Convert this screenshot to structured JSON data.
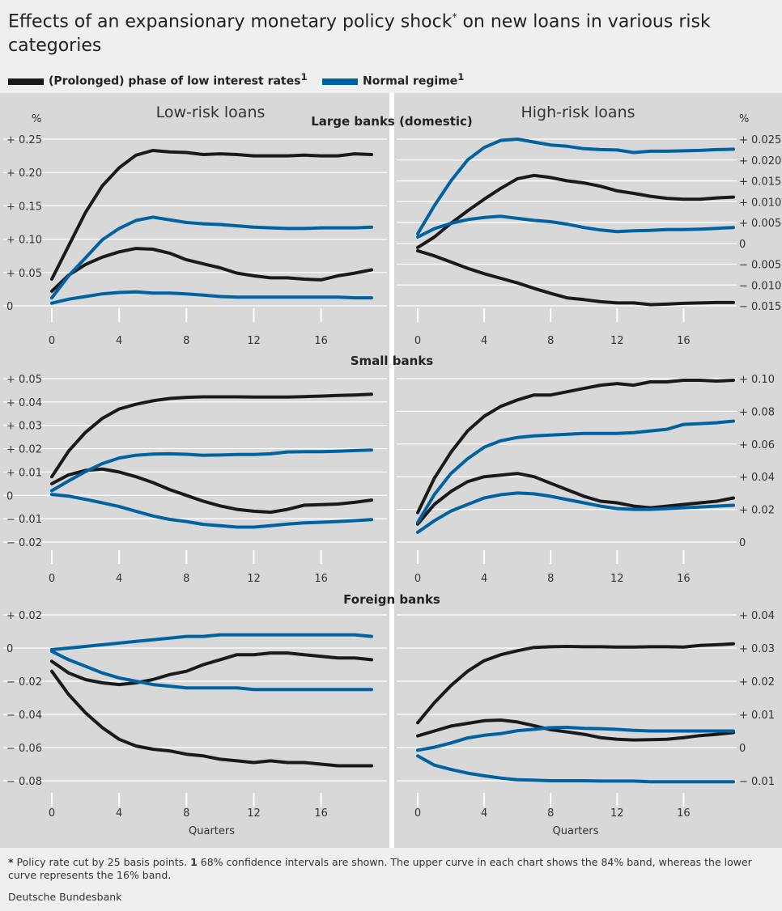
{
  "title": "Effects of an expansionary monetary policy shock",
  "title_star": "*",
  "title_rest": " on new loans in various risk categories",
  "legend": [
    {
      "label": "(Prolonged) phase of low interest rates",
      "sup": "1",
      "color": "#1a1a1a"
    },
    {
      "label": "Normal regime",
      "sup": "1",
      "color": "#0062a1"
    }
  ],
  "colors": {
    "low_rates": "#1a1a1a",
    "normal": "#0062a1",
    "panel": "#d8d8d8",
    "grid": "#ffffff"
  },
  "footnote_star": "*",
  "footnote_text": " Policy rate cut by 25 basis points. ",
  "footnote_one": "1",
  "footnote_rest": " 68% confidence intervals are shown. The upper curve in each chart shows the 84% band, whereas the lower curve represents the 16% band.",
  "source": "Deutsche Bundesbank",
  "column_titles": {
    "left": "Low-risk loans",
    "right": "High-risk loans"
  },
  "xlabel": "Quarters",
  "chart_data": [
    {
      "type": "line",
      "row": "Large banks (domestic)",
      "column": "Low-risk loans",
      "unit": "%",
      "ylim": [
        0,
        0.25
      ],
      "yticks": [
        0,
        0.05,
        0.1,
        0.15,
        0.2,
        0.25
      ],
      "ytick_labels": [
        "0",
        "+ 0.05",
        "+ 0.10",
        "+ 0.15",
        "+ 0.20",
        "+ 0.25"
      ],
      "xticks": [
        0,
        4,
        8,
        12,
        16
      ],
      "x": [
        0,
        1,
        2,
        3,
        4,
        5,
        6,
        7,
        8,
        9,
        10,
        11,
        12,
        13,
        14,
        15,
        16,
        17,
        18,
        19
      ],
      "series": [
        {
          "name": "(Prolonged) phase of low interest rates",
          "band": "upper",
          "values": [
            0.04,
            0.09,
            0.14,
            0.18,
            0.207,
            0.226,
            0.233,
            0.231,
            0.23,
            0.227,
            0.228,
            0.227,
            0.225,
            0.225,
            0.225,
            0.226,
            0.225,
            0.225,
            0.228,
            0.227
          ]
        },
        {
          "name": "(Prolonged) phase of low interest rates",
          "band": "lower",
          "values": [
            0.022,
            0.046,
            0.062,
            0.073,
            0.081,
            0.086,
            0.085,
            0.079,
            0.069,
            0.063,
            0.057,
            0.049,
            0.045,
            0.042,
            0.042,
            0.04,
            0.039,
            0.045,
            0.049,
            0.054
          ]
        },
        {
          "name": "Normal regime",
          "band": "upper",
          "values": [
            0.012,
            0.045,
            0.072,
            0.099,
            0.116,
            0.128,
            0.133,
            0.129,
            0.125,
            0.123,
            0.122,
            0.12,
            0.118,
            0.117,
            0.116,
            0.116,
            0.117,
            0.117,
            0.117,
            0.118
          ]
        },
        {
          "name": "Normal regime",
          "band": "lower",
          "values": [
            0.004,
            0.01,
            0.014,
            0.018,
            0.02,
            0.021,
            0.019,
            0.019,
            0.018,
            0.016,
            0.014,
            0.013,
            0.013,
            0.013,
            0.013,
            0.013,
            0.013,
            0.013,
            0.012,
            0.012
          ]
        }
      ]
    },
    {
      "type": "line",
      "row": "Large banks (domestic)",
      "column": "High-risk loans",
      "unit": "%",
      "ylim": [
        -0.015,
        0.025
      ],
      "yticks": [
        -0.015,
        -0.01,
        -0.005,
        0,
        0.005,
        0.01,
        0.015,
        0.02,
        0.025
      ],
      "ytick_labels": [
        "− 0.015",
        "− 0.010",
        "− 0.005",
        "0",
        "+ 0.005",
        "+ 0.010",
        "+ 0.015",
        "+ 0.020",
        "+ 0.025"
      ],
      "xticks": [
        0,
        4,
        8,
        12,
        16
      ],
      "x": [
        0,
        1,
        2,
        3,
        4,
        5,
        6,
        7,
        8,
        9,
        10,
        11,
        12,
        13,
        14,
        15,
        16,
        17,
        18,
        19
      ],
      "series": [
        {
          "name": "(Prolonged) phase of low interest rates",
          "band": "upper",
          "values": [
            -0.001,
            0.0015,
            0.0048,
            0.0078,
            0.0106,
            0.0132,
            0.0155,
            0.0163,
            0.0158,
            0.015,
            0.0145,
            0.0137,
            0.0126,
            0.012,
            0.0113,
            0.0108,
            0.0106,
            0.0106,
            0.0109,
            0.0111
          ]
        },
        {
          "name": "(Prolonged) phase of low interest rates",
          "band": "lower",
          "values": [
            -0.0018,
            -0.003,
            -0.0045,
            -0.006,
            -0.0073,
            -0.0084,
            -0.0095,
            -0.0108,
            -0.012,
            -0.0131,
            -0.0135,
            -0.014,
            -0.0143,
            -0.0143,
            -0.0147,
            -0.0146,
            -0.0144,
            -0.0143,
            -0.0142,
            -0.0142
          ]
        },
        {
          "name": "Normal regime",
          "band": "upper",
          "values": [
            0.0023,
            0.009,
            0.015,
            0.02,
            0.023,
            0.0247,
            0.025,
            0.0243,
            0.0236,
            0.0233,
            0.0227,
            0.0225,
            0.0224,
            0.0218,
            0.0221,
            0.0221,
            0.0222,
            0.0223,
            0.0225,
            0.0226
          ]
        },
        {
          "name": "Normal regime",
          "band": "lower",
          "values": [
            0.0015,
            0.0035,
            0.0048,
            0.0057,
            0.0062,
            0.0065,
            0.006,
            0.0055,
            0.0052,
            0.0046,
            0.0038,
            0.0032,
            0.0028,
            0.003,
            0.0031,
            0.0033,
            0.0033,
            0.0034,
            0.0036,
            0.0038
          ]
        }
      ]
    },
    {
      "type": "line",
      "row": "Small banks",
      "column": "Low-risk loans",
      "unit": "%",
      "ylim": [
        -0.02,
        0.05
      ],
      "yticks": [
        -0.02,
        -0.01,
        0,
        0.01,
        0.02,
        0.03,
        0.04,
        0.05
      ],
      "ytick_labels": [
        "− 0.02",
        "− 0.01",
        "0",
        "+ 0.01",
        "+ 0.02",
        "+ 0.03",
        "+ 0.04",
        "+ 0.05"
      ],
      "xticks": [
        0,
        4,
        8,
        12,
        16
      ],
      "x": [
        0,
        1,
        2,
        3,
        4,
        5,
        6,
        7,
        8,
        9,
        10,
        11,
        12,
        13,
        14,
        15,
        16,
        17,
        18,
        19
      ],
      "series": [
        {
          "name": "(Prolonged) phase of low interest rates",
          "band": "upper",
          "values": [
            0.008,
            0.019,
            0.027,
            0.033,
            0.037,
            0.039,
            0.0405,
            0.0415,
            0.042,
            0.0422,
            0.0422,
            0.0422,
            0.0421,
            0.0421,
            0.0421,
            0.0423,
            0.0425,
            0.0428,
            0.043,
            0.0433
          ]
        },
        {
          "name": "(Prolonged) phase of low interest rates",
          "band": "lower",
          "values": [
            0.005,
            0.0088,
            0.0107,
            0.0113,
            0.01,
            0.008,
            0.0055,
            0.0025,
            0,
            -0.0025,
            -0.0045,
            -0.006,
            -0.0068,
            -0.0072,
            -0.006,
            -0.0042,
            -0.004,
            -0.0037,
            -0.003,
            -0.002
          ]
        },
        {
          "name": "Normal regime",
          "band": "upper",
          "values": [
            0.002,
            0.0062,
            0.0102,
            0.0136,
            0.016,
            0.0172,
            0.0177,
            0.0178,
            0.0176,
            0.0172,
            0.0173,
            0.0175,
            0.0175,
            0.0178,
            0.0186,
            0.0187,
            0.0187,
            0.0189,
            0.0192,
            0.0194
          ]
        },
        {
          "name": "Normal regime",
          "band": "lower",
          "values": [
            0.0004,
            -0.0003,
            -0.0017,
            -0.0032,
            -0.0048,
            -0.0068,
            -0.0088,
            -0.0103,
            -0.0112,
            -0.0124,
            -0.013,
            -0.0136,
            -0.0136,
            -0.013,
            -0.0123,
            -0.0118,
            -0.0115,
            -0.0112,
            -0.0108,
            -0.0104
          ]
        }
      ]
    },
    {
      "type": "line",
      "row": "Small banks",
      "column": "High-risk loans",
      "unit": "%",
      "ylim": [
        0,
        0.1
      ],
      "yticks": [
        0,
        0.02,
        0.04,
        0.06,
        0.08,
        0.1
      ],
      "ytick_labels": [
        "0",
        "+ 0.02",
        "+ 0.04",
        "+ 0.06",
        "+ 0.08",
        "+ 0.10"
      ],
      "xticks": [
        0,
        4,
        8,
        12,
        16
      ],
      "x": [
        0,
        1,
        2,
        3,
        4,
        5,
        6,
        7,
        8,
        9,
        10,
        11,
        12,
        13,
        14,
        15,
        16,
        17,
        18,
        19
      ],
      "series": [
        {
          "name": "(Prolonged) phase of low interest rates",
          "band": "upper",
          "values": [
            0.018,
            0.039,
            0.055,
            0.068,
            0.077,
            0.083,
            0.087,
            0.09,
            0.09,
            0.092,
            0.094,
            0.096,
            0.097,
            0.096,
            0.098,
            0.098,
            0.099,
            0.099,
            0.0985,
            0.099
          ]
        },
        {
          "name": "(Prolonged) phase of low interest rates",
          "band": "lower",
          "values": [
            0.011,
            0.023,
            0.031,
            0.037,
            0.04,
            0.041,
            0.042,
            0.04,
            0.036,
            0.032,
            0.028,
            0.025,
            0.024,
            0.022,
            0.021,
            0.022,
            0.023,
            0.024,
            0.025,
            0.027
          ]
        },
        {
          "name": "Normal regime",
          "band": "upper",
          "values": [
            0.012,
            0.029,
            0.042,
            0.051,
            0.058,
            0.062,
            0.064,
            0.065,
            0.0655,
            0.066,
            0.0665,
            0.0665,
            0.0665,
            0.067,
            0.068,
            0.069,
            0.072,
            0.0725,
            0.073,
            0.074
          ]
        },
        {
          "name": "Normal regime",
          "band": "lower",
          "values": [
            0.006,
            0.013,
            0.019,
            0.023,
            0.027,
            0.029,
            0.03,
            0.0295,
            0.028,
            0.026,
            0.024,
            0.022,
            0.0205,
            0.02,
            0.02,
            0.0205,
            0.021,
            0.0215,
            0.022,
            0.0225
          ]
        }
      ]
    },
    {
      "type": "line",
      "row": "Foreign banks",
      "column": "Low-risk loans",
      "unit": "%",
      "ylim": [
        -0.08,
        0.02
      ],
      "yticks": [
        -0.08,
        -0.06,
        -0.04,
        -0.02,
        0,
        0.02
      ],
      "ytick_labels": [
        "− 0.08",
        "− 0.06",
        "− 0.04",
        "− 0.02",
        "0",
        "+ 0.02"
      ],
      "xticks": [
        0,
        4,
        8,
        12,
        16
      ],
      "x": [
        0,
        1,
        2,
        3,
        4,
        5,
        6,
        7,
        8,
        9,
        10,
        11,
        12,
        13,
        14,
        15,
        16,
        17,
        18,
        19
      ],
      "series": [
        {
          "name": "(Prolonged) phase of low interest rates",
          "band": "upper",
          "values": [
            -0.008,
            -0.015,
            -0.019,
            -0.021,
            -0.022,
            -0.021,
            -0.019,
            -0.016,
            -0.014,
            -0.01,
            -0.007,
            -0.004,
            -0.004,
            -0.003,
            -0.003,
            -0.004,
            -0.005,
            -0.006,
            -0.006,
            -0.007
          ]
        },
        {
          "name": "(Prolonged) phase of low interest rates",
          "band": "lower",
          "values": [
            -0.014,
            -0.028,
            -0.039,
            -0.048,
            -0.055,
            -0.059,
            -0.061,
            -0.062,
            -0.064,
            -0.065,
            -0.067,
            -0.068,
            -0.069,
            -0.068,
            -0.069,
            -0.069,
            -0.07,
            -0.071,
            -0.071,
            -0.071
          ]
        },
        {
          "name": "Normal regime",
          "band": "upper",
          "values": [
            -0.001,
            0.0,
            0.001,
            0.002,
            0.003,
            0.004,
            0.005,
            0.006,
            0.007,
            0.007,
            0.008,
            0.008,
            0.008,
            0.008,
            0.008,
            0.008,
            0.008,
            0.008,
            0.008,
            0.007
          ]
        },
        {
          "name": "Normal regime",
          "band": "lower",
          "values": [
            -0.002,
            -0.007,
            -0.011,
            -0.015,
            -0.018,
            -0.02,
            -0.022,
            -0.023,
            -0.024,
            -0.024,
            -0.024,
            -0.024,
            -0.025,
            -0.025,
            -0.025,
            -0.025,
            -0.025,
            -0.025,
            -0.025,
            -0.025
          ]
        }
      ]
    },
    {
      "type": "line",
      "row": "Foreign banks",
      "column": "High-risk loans",
      "unit": "%",
      "ylim": [
        -0.01,
        0.04
      ],
      "yticks": [
        -0.01,
        0,
        0.01,
        0.02,
        0.03,
        0.04
      ],
      "ytick_labels": [
        "− 0.01",
        "0",
        "+ 0.01",
        "+ 0.02",
        "+ 0.03",
        "+ 0.04"
      ],
      "xticks": [
        0,
        4,
        8,
        12,
        16
      ],
      "x": [
        0,
        1,
        2,
        3,
        4,
        5,
        6,
        7,
        8,
        9,
        10,
        11,
        12,
        13,
        14,
        15,
        16,
        17,
        18,
        19
      ],
      "series": [
        {
          "name": "(Prolonged) phase of low interest rates",
          "band": "upper",
          "values": [
            0.0075,
            0.0135,
            0.0187,
            0.023,
            0.0262,
            0.028,
            0.0292,
            0.0302,
            0.0304,
            0.0305,
            0.0304,
            0.0304,
            0.0303,
            0.0303,
            0.0304,
            0.0304,
            0.0303,
            0.0308,
            0.031,
            0.0313
          ]
        },
        {
          "name": "(Prolonged) phase of low interest rates",
          "band": "lower",
          "values": [
            0.0035,
            0.005,
            0.0065,
            0.0073,
            0.0081,
            0.0083,
            0.0077,
            0.0066,
            0.0054,
            0.0047,
            0.004,
            0.003,
            0.0025,
            0.0023,
            0.0024,
            0.0025,
            0.003,
            0.0036,
            0.004,
            0.0045
          ]
        },
        {
          "name": "Normal regime",
          "band": "upper",
          "values": [
            -0.0008,
            0.0001,
            0.0014,
            0.0029,
            0.0037,
            0.0042,
            0.0051,
            0.0055,
            0.006,
            0.0061,
            0.0058,
            0.0057,
            0.0055,
            0.0052,
            0.005,
            0.005,
            0.005,
            0.005,
            0.005,
            0.005
          ]
        },
        {
          "name": "Normal regime",
          "band": "lower",
          "values": [
            -0.0025,
            -0.0053,
            -0.0066,
            -0.0077,
            -0.0085,
            -0.0092,
            -0.0097,
            -0.0098,
            -0.01,
            -0.01,
            -0.01,
            -0.0101,
            -0.0101,
            -0.0101,
            -0.0103,
            -0.0103,
            -0.0103,
            -0.0103,
            -0.0103,
            -0.0103
          ]
        }
      ]
    }
  ]
}
